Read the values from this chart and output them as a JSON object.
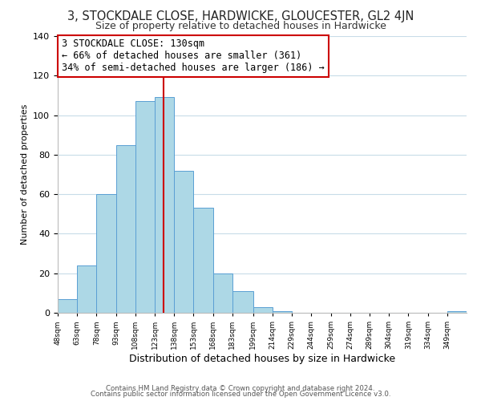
{
  "title": "3, STOCKDALE CLOSE, HARDWICKE, GLOUCESTER, GL2 4JN",
  "subtitle": "Size of property relative to detached houses in Hardwicke",
  "xlabel": "Distribution of detached houses by size in Hardwicke",
  "ylabel": "Number of detached properties",
  "footer_lines": [
    "Contains HM Land Registry data © Crown copyright and database right 2024.",
    "Contains public sector information licensed under the Open Government Licence v3.0."
  ],
  "bins": [
    48,
    63,
    78,
    93,
    108,
    123,
    138,
    153,
    168,
    183,
    199,
    214,
    229,
    244,
    259,
    274,
    289,
    304,
    319,
    334,
    349
  ],
  "counts": [
    7,
    24,
    60,
    85,
    107,
    109,
    72,
    53,
    20,
    11,
    3,
    1,
    0,
    0,
    0,
    0,
    0,
    0,
    0,
    0,
    1
  ],
  "bar_color": "#add8e6",
  "bar_edge_color": "#5a9fd4",
  "reference_line_x": 130,
  "reference_line_color": "#cc0000",
  "annotation_box_text": "3 STOCKDALE CLOSE: 130sqm\n← 66% of detached houses are smaller (361)\n34% of semi-detached houses are larger (186) →",
  "annotation_fontsize": 8.5,
  "title_fontsize": 10.5,
  "subtitle_fontsize": 9,
  "xlabel_fontsize": 9,
  "ylabel_fontsize": 8,
  "tick_labels": [
    "48sqm",
    "63sqm",
    "78sqm",
    "93sqm",
    "108sqm",
    "123sqm",
    "138sqm",
    "153sqm",
    "168sqm",
    "183sqm",
    "199sqm",
    "214sqm",
    "229sqm",
    "244sqm",
    "259sqm",
    "274sqm",
    "289sqm",
    "304sqm",
    "319sqm",
    "334sqm",
    "349sqm"
  ],
  "ylim": [
    0,
    140
  ],
  "yticks": [
    0,
    20,
    40,
    60,
    80,
    100,
    120,
    140
  ],
  "background_color": "#ffffff",
  "grid_color": "#c8dce8"
}
